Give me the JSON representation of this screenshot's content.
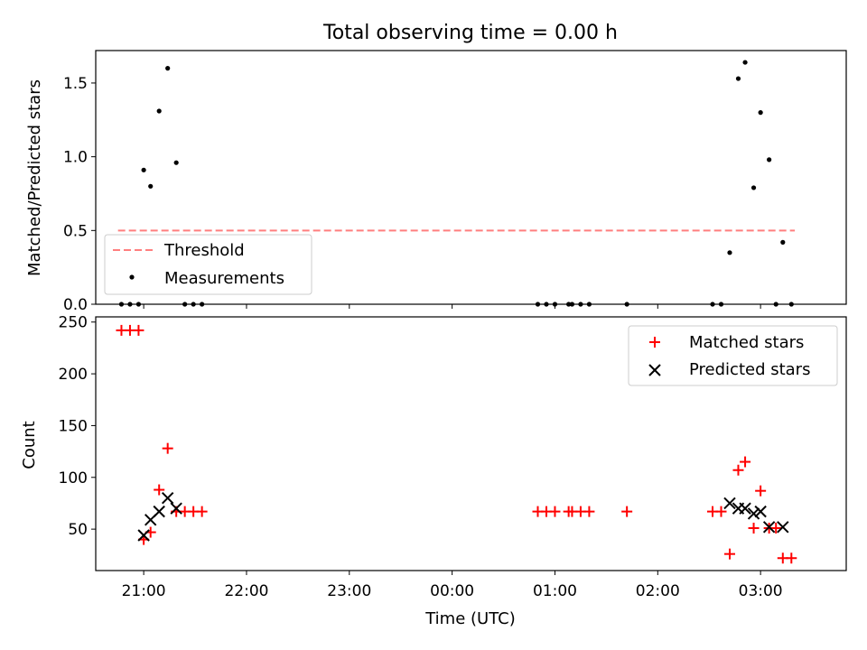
{
  "chart_data": [
    {
      "type": "scatter",
      "title": "Total observing time = 0.00 h",
      "ylabel": "Matched/Predicted stars",
      "xlim": [
        "20:32",
        "03:50"
      ],
      "ylim": [
        0,
        1.72
      ],
      "yticks": [
        "0.0",
        "0.5",
        "1.0",
        "1.5"
      ],
      "legend": "lower-left",
      "threshold": {
        "name": "Threshold",
        "value": 0.5,
        "x_range": [
          "20:45",
          "03:20"
        ],
        "color": "#ff7f7f"
      },
      "series": [
        {
          "name": "Measurements",
          "color": "#000000",
          "points": [
            [
              "20:47",
              0
            ],
            [
              "20:52",
              0
            ],
            [
              "20:57",
              0
            ],
            [
              "21:00",
              0.91
            ],
            [
              "21:04",
              0.8
            ],
            [
              "21:09",
              1.31
            ],
            [
              "21:14",
              1.6
            ],
            [
              "21:19",
              0.96
            ],
            [
              "21:24",
              0
            ],
            [
              "21:29",
              0
            ],
            [
              "21:34",
              0
            ],
            [
              "00:50",
              0
            ],
            [
              "00:55",
              0
            ],
            [
              "01:00",
              0
            ],
            [
              "01:08",
              0
            ],
            [
              "01:10",
              0
            ],
            [
              "01:15",
              0
            ],
            [
              "01:20",
              0
            ],
            [
              "01:42",
              0
            ],
            [
              "02:32",
              0
            ],
            [
              "02:37",
              0
            ],
            [
              "02:42",
              0.35
            ],
            [
              "02:47",
              1.53
            ],
            [
              "02:51",
              1.64
            ],
            [
              "02:56",
              0.79
            ],
            [
              "03:00",
              1.3
            ],
            [
              "03:05",
              0.98
            ],
            [
              "03:09",
              0
            ],
            [
              "03:13",
              0.42
            ],
            [
              "03:18",
              0
            ]
          ]
        }
      ]
    },
    {
      "type": "scatter",
      "xlabel": "Time (UTC)",
      "ylabel": "Count",
      "xlim": [
        "20:32",
        "03:50"
      ],
      "ylim": [
        10,
        255
      ],
      "xticks": [
        "21:00",
        "22:00",
        "23:00",
        "00:00",
        "01:00",
        "02:00",
        "03:00"
      ],
      "yticks": [
        "50",
        "100",
        "150",
        "200",
        "250"
      ],
      "legend": "upper-right",
      "series": [
        {
          "name": "Matched stars",
          "marker": "+",
          "color": "#ff0000",
          "points": [
            [
              "20:47",
              242
            ],
            [
              "20:52",
              242
            ],
            [
              "20:57",
              242
            ],
            [
              "21:00",
              40
            ],
            [
              "21:04",
              47
            ],
            [
              "21:09",
              88
            ],
            [
              "21:14",
              128
            ],
            [
              "21:19",
              67
            ],
            [
              "21:24",
              67
            ],
            [
              "21:29",
              67
            ],
            [
              "21:34",
              67
            ],
            [
              "00:50",
              67
            ],
            [
              "00:55",
              67
            ],
            [
              "01:00",
              67
            ],
            [
              "01:08",
              67
            ],
            [
              "01:10",
              67
            ],
            [
              "01:15",
              67
            ],
            [
              "01:20",
              67
            ],
            [
              "01:42",
              67
            ],
            [
              "02:32",
              67
            ],
            [
              "02:37",
              67
            ],
            [
              "02:42",
              26
            ],
            [
              "02:47",
              107
            ],
            [
              "02:51",
              115
            ],
            [
              "02:56",
              51
            ],
            [
              "03:00",
              87
            ],
            [
              "03:05",
              51
            ],
            [
              "03:09",
              51
            ],
            [
              "03:13",
              22
            ],
            [
              "03:18",
              22
            ]
          ]
        },
        {
          "name": "Predicted stars",
          "marker": "x",
          "color": "#000000",
          "points": [
            [
              "21:00",
              44
            ],
            [
              "21:04",
              59
            ],
            [
              "21:09",
              67
            ],
            [
              "21:14",
              80
            ],
            [
              "21:19",
              70
            ],
            [
              "02:42",
              75
            ],
            [
              "02:47",
              70
            ],
            [
              "02:51",
              70
            ],
            [
              "02:56",
              65
            ],
            [
              "03:00",
              67
            ],
            [
              "03:05",
              52
            ],
            [
              "03:13",
              52
            ]
          ]
        }
      ]
    }
  ]
}
